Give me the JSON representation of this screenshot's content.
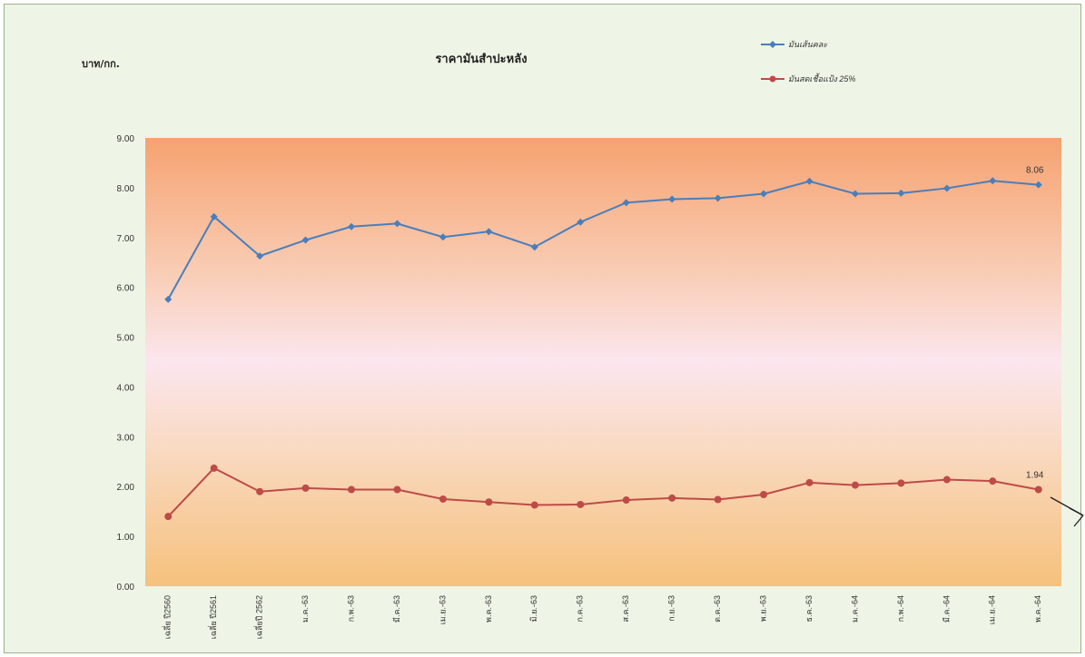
{
  "chart_data": {
    "type": "line",
    "title": "ราคามันสำปะหลัง",
    "ylabel": "บาท/กก.",
    "xlabel": "",
    "ylim": [
      0,
      9
    ],
    "yticks": [
      "0.00",
      "1.00",
      "2.00",
      "3.00",
      "4.00",
      "5.00",
      "6.00",
      "7.00",
      "8.00",
      "9.00"
    ],
    "categories": [
      "เฉลี่ย ปี2560",
      "เฉลี่ย ปี2561",
      "เฉลี่ยปี 2562",
      "ม.ค.-63",
      "ก.พ.-63",
      "มี.ค.-63",
      "เม.ย.-63",
      "พ.ค.-63",
      "มิ.ย.-63",
      "ก.ค.-63",
      "ส.ค.-63",
      "ก.ย.-63",
      "ต.ค.-63",
      "พ.ย.-63",
      "ธ.ค.-63",
      "ม.ค.-64",
      "ก.พ.-64",
      "มี.ค.-64",
      "เม.ย.-64",
      "พ.ค.-64"
    ],
    "legend_position": "top-right",
    "grid": false,
    "series": [
      {
        "name": "มันเส้นคละ",
        "color": "#4a7ebb",
        "marker": "diamond",
        "values": [
          5.76,
          7.42,
          6.63,
          6.95,
          7.22,
          7.28,
          7.01,
          7.12,
          6.81,
          7.31,
          7.7,
          7.77,
          7.79,
          7.88,
          8.13,
          7.88,
          7.89,
          7.99,
          8.14,
          8.06
        ],
        "end_label": "8.06"
      },
      {
        "name": "มันสดเชื้อแป้ง 25%",
        "color": "#be4b48",
        "marker": "circle",
        "values": [
          1.4,
          2.37,
          1.9,
          1.97,
          1.94,
          1.94,
          1.75,
          1.69,
          1.63,
          1.64,
          1.73,
          1.77,
          1.74,
          1.84,
          2.08,
          2.03,
          2.07,
          2.14,
          2.11,
          1.94
        ],
        "end_label": "1.94"
      }
    ]
  }
}
